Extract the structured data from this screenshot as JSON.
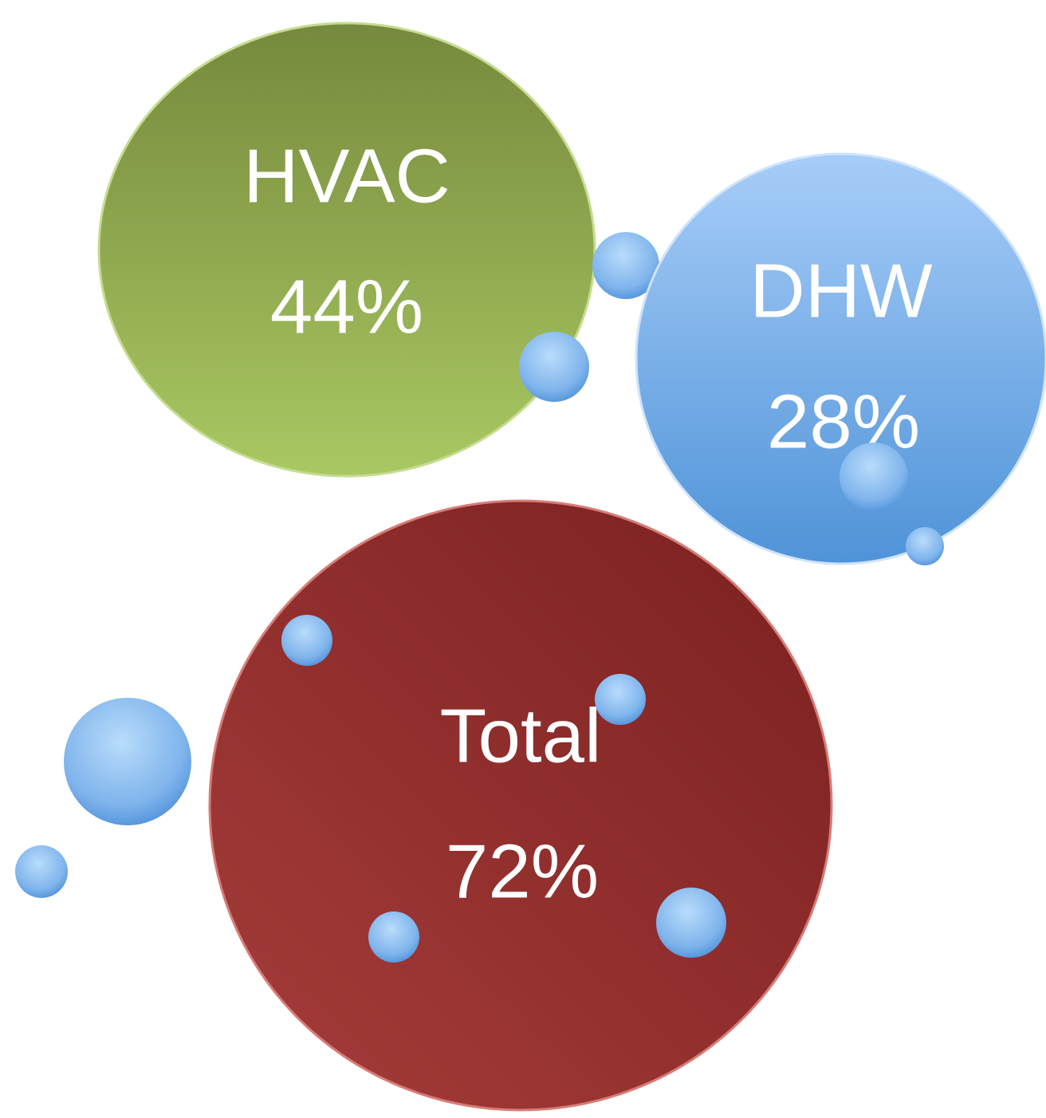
{
  "nodes": [
    {
      "label": "HVAC",
      "value": "44%"
    },
    {
      "label": "DHW",
      "value": "28%"
    },
    {
      "label": "Total",
      "value": "72%"
    }
  ]
}
